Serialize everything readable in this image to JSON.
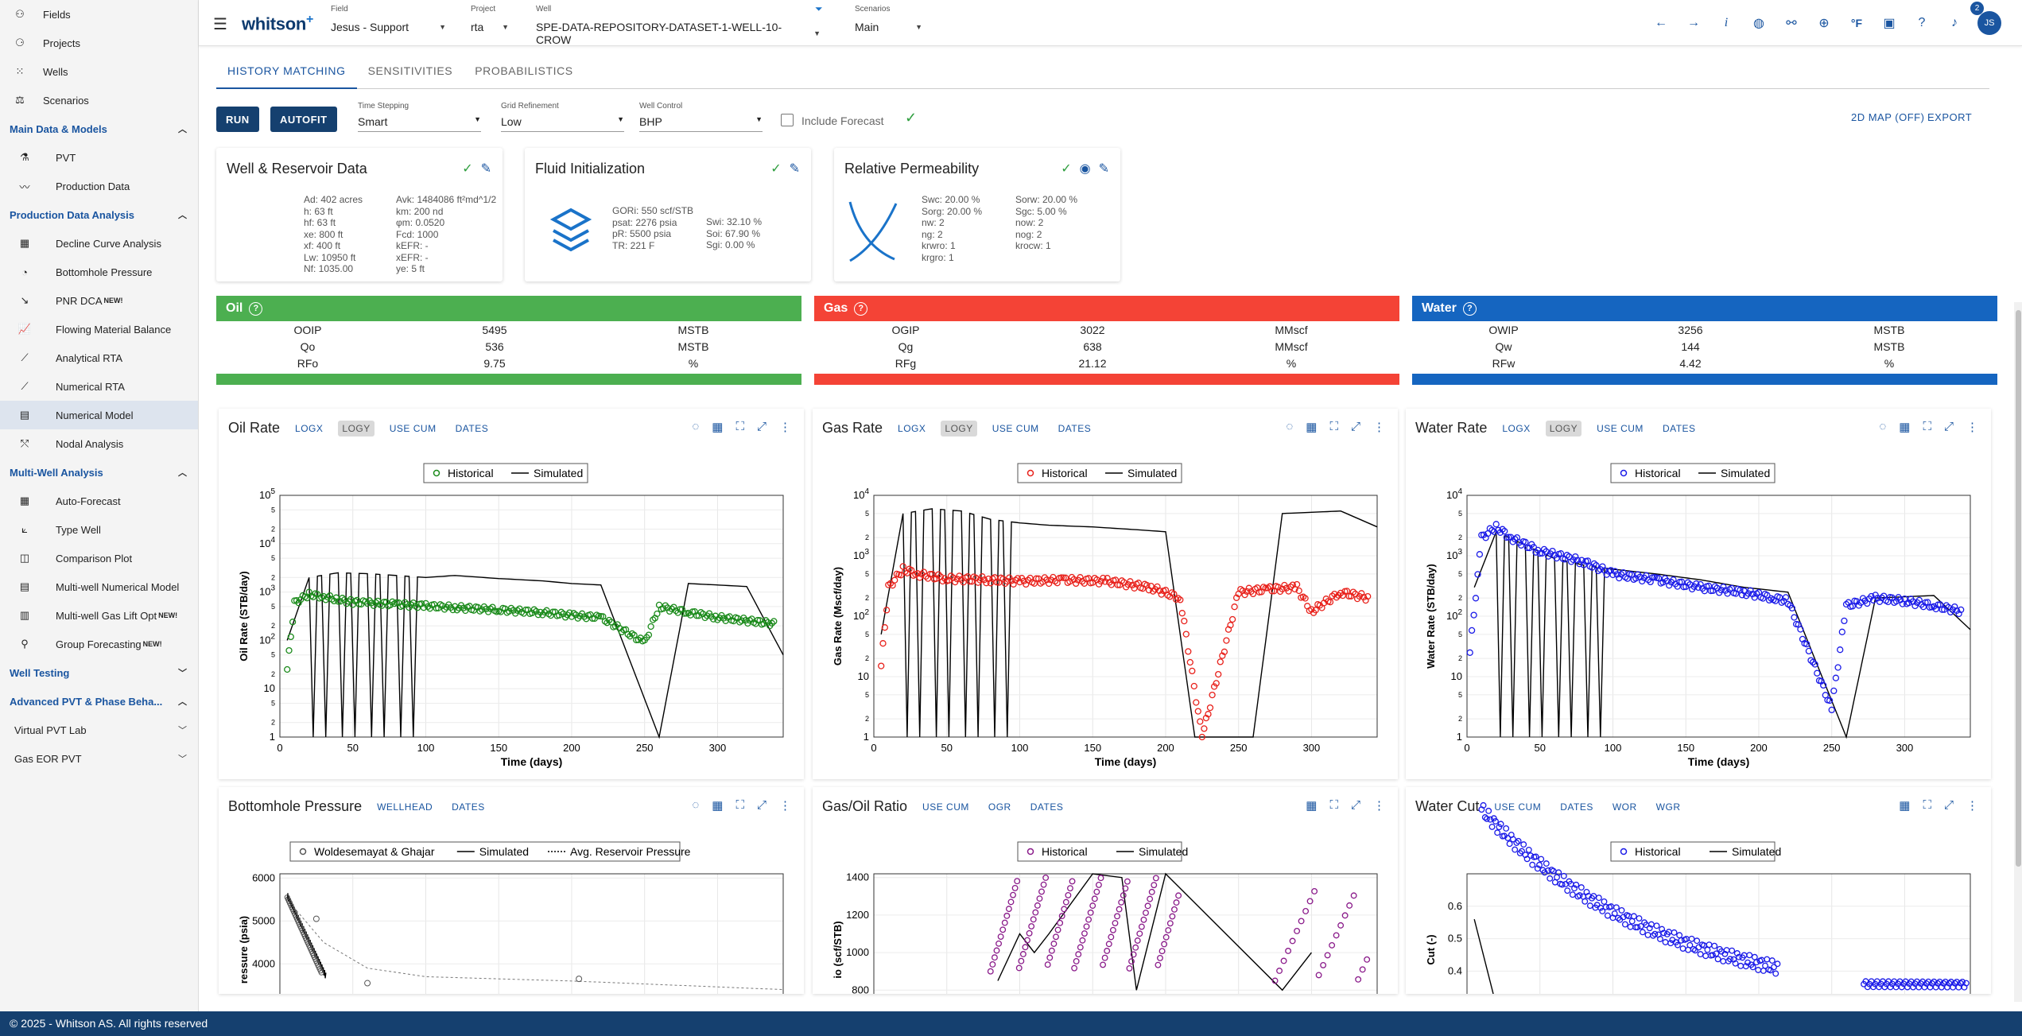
{
  "sidebar": {
    "top": [
      {
        "label": "Fields",
        "icon": "fields-icon"
      },
      {
        "label": "Projects",
        "icon": "projects-icon"
      },
      {
        "label": "Wells",
        "icon": "wells-icon"
      },
      {
        "label": "Scenarios",
        "icon": "scenarios-icon"
      }
    ],
    "sections": [
      {
        "label": "Main Data & Models",
        "open": true,
        "items": [
          {
            "label": "PVT",
            "icon": "flask-icon"
          },
          {
            "label": "Production Data",
            "icon": "trend-icon"
          }
        ]
      },
      {
        "label": "Production Data Analysis",
        "open": true,
        "items": [
          {
            "label": "Decline Curve Analysis",
            "icon": "grid-icon"
          },
          {
            "label": "Bottomhole Pressure",
            "icon": "gauge-icon"
          },
          {
            "label": "PNR DCA",
            "badge": "NEW!",
            "icon": "decline-icon"
          },
          {
            "label": "Flowing Material Balance",
            "icon": "chart-icon"
          },
          {
            "label": "Analytical RTA",
            "icon": "line-icon"
          },
          {
            "label": "Numerical RTA",
            "icon": "line-icon"
          },
          {
            "label": "Numerical Model",
            "icon": "table-icon",
            "active": true
          },
          {
            "label": "Nodal Analysis",
            "icon": "nodal-icon"
          }
        ]
      },
      {
        "label": "Multi-Well Analysis",
        "open": true,
        "items": [
          {
            "label": "Auto-Forecast",
            "icon": "grid-icon"
          },
          {
            "label": "Type Well",
            "icon": "typewell-icon"
          },
          {
            "label": "Comparison Plot",
            "icon": "compare-icon"
          },
          {
            "label": "Multi-well Numerical Model",
            "icon": "table-icon"
          },
          {
            "label": "Multi-well Gas Lift Opt",
            "badge": "NEW!",
            "icon": "gaslift-icon"
          },
          {
            "label": "Group Forecasting",
            "badge": "NEW!",
            "icon": "group-icon"
          }
        ]
      },
      {
        "label": "Well Testing",
        "open": false,
        "items": []
      },
      {
        "label": "Advanced PVT & Phase Beha...",
        "open": true,
        "items": []
      }
    ],
    "plain": [
      {
        "label": "Virtual PVT Lab"
      },
      {
        "label": "Gas EOR PVT"
      }
    ]
  },
  "header": {
    "field": {
      "label": "Field",
      "value": "Jesus - Support"
    },
    "project": {
      "label": "Project",
      "value": "rta"
    },
    "well": {
      "label": "Well",
      "value": "SPE-DATA-REPOSITORY-DATASET-1-WELL-10-CROW"
    },
    "scenario": {
      "label": "Scenarios",
      "value": "Main"
    },
    "notifications": "2",
    "avatar": "JS"
  },
  "tabs": [
    "HISTORY MATCHING",
    "SENSITIVITIES",
    "PROBABILISTICS"
  ],
  "toolbar": {
    "run": "RUN",
    "autofit": "AUTOFIT",
    "time_stepping": {
      "label": "Time Stepping",
      "value": "Smart"
    },
    "grid": {
      "label": "Grid Refinement",
      "value": "Low"
    },
    "control": {
      "label": "Well Control",
      "value": "BHP"
    },
    "include_forecast": "Include Forecast",
    "map": "2D MAP (OFF)",
    "export": "EXPORT"
  },
  "cards": {
    "well": {
      "title": "Well & Reservoir Data",
      "left": [
        "Ad: 402 acres",
        "h: 63 ft",
        "hf: 63 ft",
        "xe: 800 ft",
        "xf: 400 ft",
        "Lw: 10950 ft",
        "Nf: 1035.00"
      ],
      "right": [
        "Avk: 1484086 ft²md^1/2",
        "km: 200 nd",
        "φm: 0.0520",
        "Fcd: 1000",
        "kEFR: -",
        "xEFR: -",
        "ye: 5 ft"
      ]
    },
    "fluid": {
      "title": "Fluid Initialization",
      "col1": [
        "GORi: 550 scf/STB",
        "psat: 2276 psia",
        "pR: 5500 psia",
        "TR: 221 F"
      ],
      "col2": [
        "Swi: 32.10 %",
        "Soi: 67.90 %",
        "Sgi: 0.00 %"
      ]
    },
    "relperm": {
      "title": "Relative Permeability",
      "col1": [
        "Swc: 20.00 %",
        "Sorg: 20.00 %",
        "nw: 2",
        "ng: 2",
        "krwro: 1",
        "krgro: 1"
      ],
      "col2": [
        "Sorw: 20.00 %",
        "Sgc: 5.00 %",
        "now: 2",
        "nog: 2",
        "krocw: 1"
      ]
    }
  },
  "summary": {
    "oil": {
      "name": "Oil",
      "color": "#4caf50",
      "rows": [
        [
          "OOIP",
          "5495",
          "MSTB"
        ],
        [
          "Qo",
          "536",
          "MSTB"
        ],
        [
          "RFo",
          "9.75",
          "%"
        ]
      ]
    },
    "gas": {
      "name": "Gas",
      "color": "#f44336",
      "rows": [
        [
          "OGIP",
          "3022",
          "MMscf"
        ],
        [
          "Qg",
          "638",
          "MMscf"
        ],
        [
          "RFg",
          "21.12",
          "%"
        ]
      ]
    },
    "water": {
      "name": "Water",
      "color": "#1565c0",
      "rows": [
        [
          "OWIP",
          "3256",
          "MSTB"
        ],
        [
          "Qw",
          "144",
          "MSTB"
        ],
        [
          "RFw",
          "4.42",
          "%"
        ]
      ]
    }
  },
  "panels": {
    "oil": {
      "title": "Oil Rate",
      "opts": [
        "LOGX",
        "LOGY",
        "USE CUM",
        "DATES"
      ],
      "legend": [
        "Historical",
        "Simulated"
      ],
      "ylabel": "Oil Rate (STB/day)",
      "xlabel": "Time (days)",
      "color": "#1a8a1a"
    },
    "gas": {
      "title": "Gas Rate",
      "opts": [
        "LOGX",
        "LOGY",
        "USE CUM",
        "DATES"
      ],
      "legend": [
        "Historical",
        "Simulated"
      ],
      "ylabel": "Gas Rate (Mscf/day)",
      "xlabel": "Time (days)",
      "color": "#e8201a"
    },
    "water": {
      "title": "Water Rate",
      "opts": [
        "LOGX",
        "LOGY",
        "USE CUM",
        "DATES"
      ],
      "legend": [
        "Historical",
        "Simulated"
      ],
      "ylabel": "Water Rate (STB/day)",
      "xlabel": "Time (days)",
      "color": "#1a1ae8"
    },
    "bhp": {
      "title": "Bottomhole Pressure",
      "opts": [
        "WELLHEAD",
        "DATES"
      ],
      "legend": [
        "Woldesemayat & Ghajar",
        "Simulated",
        "Avg. Reservoir Pressure"
      ],
      "ylabel": "ressure (psia)"
    },
    "gor": {
      "title": "Gas/Oil Ratio",
      "opts": [
        "USE CUM",
        "OGR",
        "DATES"
      ],
      "legend": [
        "Historical",
        "Simulated"
      ],
      "ylabel": "io (scf/STB)"
    },
    "wc": {
      "title": "Water Cut",
      "opts": [
        "USE CUM",
        "DATES",
        "WOR",
        "WGR"
      ],
      "legend": [
        "Historical",
        "Simulated"
      ],
      "ylabel": "Cut (-)"
    }
  },
  "chart_data": [
    {
      "type": "scatter",
      "title": "Oil Rate",
      "xlabel": "Time (days)",
      "ylabel": "Oil Rate (STB/day)",
      "yscale": "log",
      "ylim": [
        1,
        100000
      ],
      "xlim": [
        0,
        345
      ],
      "xticks": [
        0,
        50,
        100,
        150,
        200,
        250,
        300
      ],
      "yticks": [
        "1",
        "10",
        "10^2",
        "10^3",
        "10^4",
        "10^5"
      ],
      "series": [
        {
          "name": "Historical",
          "x": [
            5,
            10,
            20,
            30,
            40,
            50,
            60,
            80,
            100,
            120,
            150,
            180,
            200,
            220,
            250,
            260,
            280,
            300,
            340
          ],
          "y": [
            25,
            600,
            900,
            800,
            700,
            620,
            600,
            560,
            520,
            480,
            430,
            380,
            330,
            300,
            90,
            500,
            380,
            300,
            220
          ]
        },
        {
          "name": "Simulated",
          "x": [
            5,
            20,
            40,
            60,
            80,
            100,
            120,
            150,
            180,
            200,
            220,
            260,
            280,
            320,
            345
          ],
          "y": [
            100,
            2000,
            2500,
            2400,
            2200,
            2000,
            2200,
            1900,
            1700,
            1500,
            1400,
            1,
            1500,
            1300,
            50
          ]
        }
      ]
    },
    {
      "type": "scatter",
      "title": "Gas Rate",
      "xlabel": "Time (days)",
      "ylabel": "Gas Rate (Mscf/day)",
      "yscale": "log",
      "ylim": [
        1,
        10000
      ],
      "xlim": [
        0,
        345
      ],
      "xticks": [
        0,
        50,
        100,
        150,
        200,
        250,
        300
      ],
      "yticks": [
        "1",
        "10",
        "10^2",
        "10^3",
        "10^4"
      ],
      "series": [
        {
          "name": "Historical",
          "x": [
            5,
            10,
            20,
            30,
            50,
            80,
            100,
            130,
            160,
            190,
            210,
            225,
            250,
            270,
            290,
            300,
            320,
            340
          ],
          "y": [
            15,
            300,
            600,
            500,
            420,
            400,
            380,
            400,
            380,
            300,
            200,
            1,
            250,
            280,
            300,
            120,
            250,
            200
          ]
        },
        {
          "name": "Simulated",
          "x": [
            5,
            20,
            40,
            60,
            80,
            100,
            120,
            150,
            180,
            200,
            220,
            260,
            280,
            320,
            345
          ],
          "y": [
            50,
            5000,
            6000,
            5500,
            4000,
            3500,
            3200,
            3000,
            2700,
            2500,
            1,
            1,
            5000,
            5500,
            3000
          ]
        }
      ]
    },
    {
      "type": "scatter",
      "title": "Water Rate",
      "xlabel": "Time (days)",
      "ylabel": "Water Rate (STB/day)",
      "yscale": "log",
      "ylim": [
        1,
        10000
      ],
      "xlim": [
        0,
        345
      ],
      "xticks": [
        0,
        50,
        100,
        150,
        200,
        250,
        300
      ],
      "yticks": [
        "1",
        "10",
        "10^2",
        "10^3",
        "10^4"
      ],
      "series": [
        {
          "name": "Historical",
          "x": [
            2,
            10,
            20,
            30,
            50,
            80,
            100,
            130,
            160,
            190,
            210,
            220,
            250,
            260,
            280,
            300,
            320,
            340
          ],
          "y": [
            25,
            2000,
            3000,
            2000,
            1200,
            800,
            500,
            400,
            300,
            250,
            200,
            180,
            3,
            150,
            200,
            180,
            150,
            120
          ]
        },
        {
          "name": "Simulated",
          "x": [
            5,
            20,
            40,
            60,
            80,
            100,
            130,
            160,
            190,
            220,
            260,
            280,
            320,
            345
          ],
          "y": [
            300,
            2500,
            1500,
            900,
            700,
            600,
            500,
            400,
            300,
            250,
            1,
            200,
            220,
            60
          ]
        }
      ]
    },
    {
      "type": "line",
      "title": "Bottomhole Pressure",
      "ylabel": "ressure (psia)",
      "yticks": [
        "4000",
        "5000",
        "6000"
      ],
      "series": [
        {
          "name": "Woldesemayat & Ghajar",
          "x": [
            5,
            25,
            60,
            210
          ],
          "y": [
            5500,
            5050,
            3800,
            3650
          ]
        },
        {
          "name": "Simulated",
          "x": [
            5,
            15,
            25,
            32
          ],
          "y": [
            5600,
            4900,
            4200,
            3700
          ]
        },
        {
          "name": "Avg. Reservoir Pressure",
          "x": [
            5,
            30,
            60,
            100,
            200,
            345
          ],
          "y": [
            5500,
            4500,
            3900,
            3700,
            3600,
            3400
          ]
        }
      ]
    },
    {
      "type": "scatter",
      "title": "Gas/Oil Ratio",
      "ylabel": "io (scf/STB)",
      "yticks": [
        "800",
        "1000",
        "1200",
        "1400"
      ],
      "series": [
        {
          "name": "Historical",
          "x": [
            80,
            100,
            120,
            140,
            160,
            180,
            200,
            280,
            300,
            320
          ],
          "y": [
            900,
            1000,
            1100,
            1200,
            1300,
            1000,
            900,
            1000,
            1100,
            900
          ]
        },
        {
          "name": "Simulated",
          "x": [
            85,
            100,
            110,
            120,
            150,
            170,
            180,
            200,
            280,
            300
          ],
          "y": [
            850,
            1100,
            1000,
            1100,
            1500,
            1400,
            800,
            1500,
            800,
            1000
          ]
        }
      ]
    },
    {
      "type": "scatter",
      "title": "Water Cut",
      "ylabel": "Cut (-)",
      "yticks": [
        "0.4",
        "0.5",
        "0.6"
      ],
      "series": [
        {
          "name": "Historical",
          "x": [
            10,
            20,
            40,
            60,
            80,
            100,
            130,
            160,
            200,
            270,
            300,
            340
          ],
          "y": [
            0.65,
            0.6,
            0.52,
            0.48,
            0.45,
            0.43,
            0.4,
            0.38,
            0.36,
            0.38,
            0.36,
            0.37
          ]
        },
        {
          "name": "Simulated",
          "x": [
            5,
            15
          ],
          "y": [
            0.55,
            0.35
          ]
        }
      ]
    }
  ],
  "footer": "© 2025 - Whitson AS. All rights reserved"
}
